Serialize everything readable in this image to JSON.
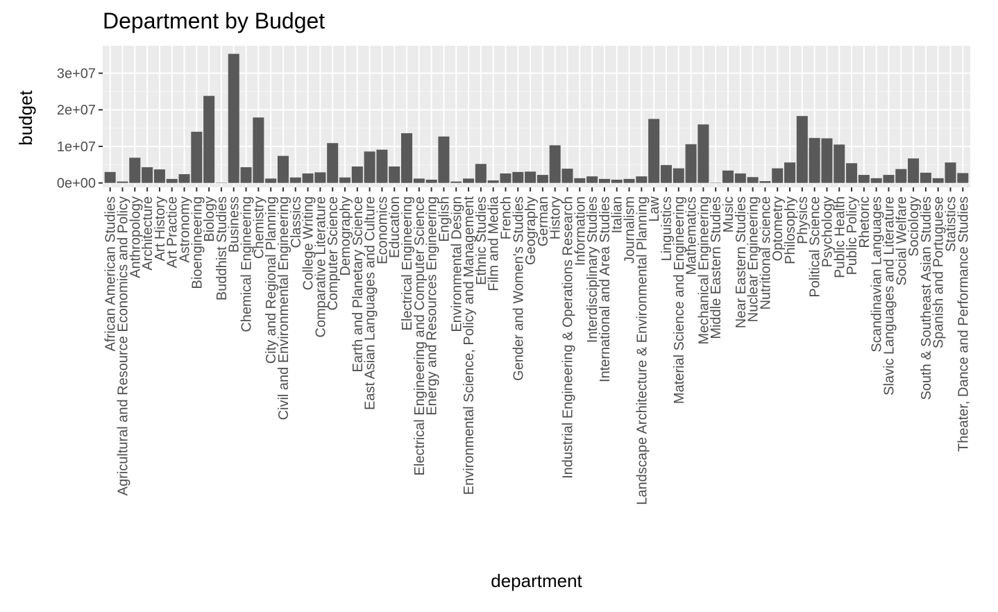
{
  "chart_data": {
    "type": "bar",
    "title": "Department by Budget",
    "xlabel": "department",
    "ylabel": "budget",
    "ylim": [
      -1200000,
      37500000
    ],
    "yticks": [
      0,
      10000000,
      20000000,
      30000000
    ],
    "ytick_labels": [
      "0e+00",
      "1e+07",
      "2e+07",
      "3e+07"
    ],
    "grid": true,
    "colors": {
      "bar": "#595959",
      "panel": "#ebebeb",
      "grid_major": "#ffffff",
      "grid_minor": "#f5f5f5",
      "tick": "#333333",
      "tick_label": "#4d4d4d"
    },
    "categories": [
      "African American Studies",
      "Agricultural and Resource Economics and Policy",
      "Anthropology",
      "Architecture",
      "Art History",
      "Art Practice",
      "Astronomy",
      "Bioengineering",
      "Biology",
      "Buddhist Studies",
      "Business",
      "Chemical Engineering",
      "Chemistry",
      "City and Regional Planning",
      "Civil and Environmental Engineering",
      "Classics",
      "College Writing",
      "Comparative Literature",
      "Computer Science",
      "Demography",
      "Earth and Planetary Science",
      "East Asian Languages and Culture",
      "Economics",
      "Education",
      "Electrical Engineering",
      "Electrical Engineering and Computer Science",
      "Energy and Resources Engineering",
      "English",
      "Environmental Design",
      "Environmental Science, Policy and Management",
      "Ethnic Studies",
      "Film and Media",
      "French",
      "Gender and Women's Studies",
      "Geography",
      "German",
      "History",
      "Industrial Engineering & Operations Research",
      "Information",
      "Interdisciplinary Studies",
      "International and Area Studies",
      "Italian",
      "Journalism",
      "Landscape Architecture & Environmental Planning",
      "Law",
      "Linguistics",
      "Material Science and Engineering",
      "Mathematics",
      "Mechanical Engineering",
      "Middle Eastern Studies",
      "Music",
      "Near Eastern Studies",
      "Nuclear Engineering",
      "Nutritional science",
      "Optometry",
      "Philosophy",
      "Physics",
      "Political Science",
      "Psychology",
      "Public Health",
      "Public Policy",
      "Rhetoric",
      "Scandinavian Languages",
      "Slavic Languages and Literature",
      "Social Welfare",
      "Sociology",
      "South & Southeast Asian Studies",
      "Spanish and Portuguese",
      "Statistics",
      "Theater, Dance and Performance Studies"
    ],
    "values": [
      3000000,
      400000,
      6900000,
      4300000,
      3700000,
      1100000,
      2400000,
      14000000,
      23800000,
      100000,
      35300000,
      4300000,
      17900000,
      1200000,
      7400000,
      1500000,
      2600000,
      2900000,
      10900000,
      1500000,
      4500000,
      8600000,
      9100000,
      4500000,
      13600000,
      1200000,
      900000,
      12700000,
      400000,
      1200000,
      5200000,
      700000,
      2600000,
      3000000,
      3100000,
      2200000,
      10300000,
      3900000,
      1300000,
      1800000,
      1100000,
      900000,
      1100000,
      1800000,
      17500000,
      4900000,
      4000000,
      10600000,
      16000000,
      100000,
      3400000,
      2600000,
      1600000,
      500000,
      4000000,
      5600000,
      18300000,
      12300000,
      12200000,
      10500000,
      5400000,
      2200000,
      1300000,
      2200000,
      3800000,
      6700000,
      2800000,
      1300000,
      5600000,
      2700000
    ]
  }
}
